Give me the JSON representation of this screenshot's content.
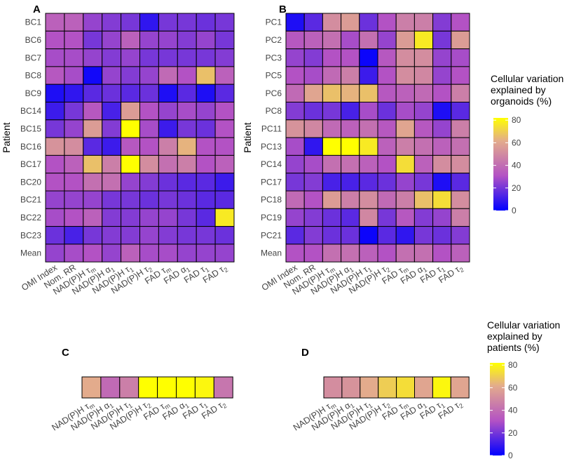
{
  "figure": {
    "column_labels_heatmap": [
      "OMI Index",
      "Nom. RR",
      "NAD(P)H τm",
      "NAD(P)H α1",
      "NAD(P)H τ1",
      "NAD(P)H τ2",
      "FAD τm",
      "FAD α1",
      "FAD τ1",
      "FAD τ2"
    ],
    "column_labels_bar": [
      "NAD(P)H τm",
      "NAD(P)H α1",
      "NAD(P)H τ1",
      "NAD(P)H τ2",
      "FAD τm",
      "FAD α1",
      "FAD τ1",
      "FAD τ2"
    ],
    "y_axis_title": "Patient"
  },
  "colors": {
    "scale_low": "#0000ff",
    "scale_mid": "#b352c4",
    "scale_mid2": "#e3ab8c",
    "scale_high": "#ffff00",
    "border": "#000000"
  },
  "legends": [
    {
      "title_lines": [
        "Cellular variation",
        "explained by",
        "organoids (%)"
      ],
      "ticks": [
        "80",
        "60",
        "40",
        "20",
        "0"
      ]
    },
    {
      "title_lines": [
        "Cellular variation",
        "explained by",
        "patients (%)"
      ],
      "ticks": [
        "80",
        "60",
        "40",
        "20",
        "0"
      ]
    }
  ],
  "chart_data": [
    {
      "panel": "A",
      "type": "heatmap",
      "ylabel": "Patient",
      "rows": [
        "BC1",
        "BC6",
        "BC7",
        "BC8",
        "BC9",
        "BC14",
        "BC15",
        "BC16",
        "BC17",
        "BC20",
        "BC21",
        "BC22",
        "BC23",
        "Mean"
      ],
      "values": [
        [
          35,
          35,
          25,
          22,
          20,
          8,
          20,
          20,
          18,
          20
        ],
        [
          30,
          30,
          20,
          25,
          35,
          25,
          25,
          22,
          25,
          20
        ],
        [
          28,
          28,
          25,
          22,
          25,
          20,
          20,
          20,
          20,
          22
        ],
        [
          32,
          28,
          3,
          25,
          22,
          25,
          38,
          30,
          65,
          35
        ],
        [
          5,
          8,
          15,
          18,
          15,
          18,
          5,
          15,
          5,
          15
        ],
        [
          10,
          20,
          32,
          12,
          55,
          30,
          25,
          28,
          25,
          30
        ],
        [
          20,
          25,
          55,
          22,
          82,
          28,
          10,
          20,
          18,
          30
        ],
        [
          52,
          50,
          15,
          10,
          32,
          30,
          45,
          62,
          30,
          30
        ],
        [
          30,
          35,
          65,
          45,
          82,
          50,
          40,
          45,
          30,
          35
        ],
        [
          30,
          30,
          40,
          40,
          25,
          22,
          18,
          15,
          15,
          10
        ],
        [
          25,
          25,
          25,
          20,
          20,
          18,
          20,
          18,
          15,
          15
        ],
        [
          28,
          30,
          35,
          22,
          22,
          25,
          25,
          20,
          15,
          75
        ],
        [
          18,
          12,
          20,
          22,
          22,
          25,
          22,
          20,
          20,
          18
        ],
        [
          25,
          28,
          30,
          25,
          35,
          28,
          28,
          25,
          25,
          25
        ]
      ]
    },
    {
      "panel": "B",
      "type": "heatmap",
      "ylabel": "Patient",
      "rows": [
        "PC1",
        "PC2",
        "PC3",
        "PC5",
        "PC6",
        "PC8",
        "PC11",
        "PC13",
        "PC14",
        "PC17",
        "PC18",
        "PC19",
        "PC21",
        "Mean"
      ],
      "values": [
        [
          5,
          15,
          50,
          55,
          18,
          30,
          45,
          45,
          22,
          30
        ],
        [
          32,
          35,
          40,
          28,
          40,
          25,
          55,
          75,
          20,
          55
        ],
        [
          25,
          22,
          30,
          30,
          2,
          32,
          50,
          50,
          25,
          28
        ],
        [
          30,
          28,
          38,
          45,
          10,
          30,
          50,
          48,
          25,
          30
        ],
        [
          38,
          58,
          65,
          62,
          65,
          32,
          35,
          38,
          30,
          45
        ],
        [
          22,
          18,
          20,
          12,
          28,
          18,
          28,
          25,
          5,
          15
        ],
        [
          52,
          48,
          38,
          35,
          40,
          32,
          58,
          32,
          25,
          45
        ],
        [
          28,
          8,
          82,
          82,
          75,
          35,
          45,
          40,
          35,
          40
        ],
        [
          25,
          28,
          40,
          40,
          35,
          30,
          72,
          35,
          50,
          50
        ],
        [
          20,
          22,
          12,
          12,
          15,
          18,
          25,
          20,
          5,
          15
        ],
        [
          38,
          30,
          55,
          45,
          50,
          38,
          45,
          65,
          72,
          50
        ],
        [
          25,
          22,
          18,
          15,
          48,
          20,
          32,
          22,
          25,
          45
        ],
        [
          15,
          22,
          18,
          18,
          2,
          15,
          8,
          20,
          18,
          22
        ],
        [
          30,
          30,
          40,
          40,
          35,
          30,
          40,
          40,
          30,
          35
        ]
      ]
    },
    {
      "panel": "C",
      "type": "heatmap",
      "categories": [
        "NAD(P)H τm",
        "NAD(P)H α1",
        "NAD(P)H τ1",
        "NAD(P)H τ2",
        "FAD τm",
        "FAD α1",
        "FAD τ1",
        "FAD τ2"
      ],
      "values": [
        60,
        38,
        45,
        80,
        80,
        80,
        78,
        42
      ]
    },
    {
      "panel": "D",
      "type": "heatmap",
      "categories": [
        "NAD(P)H τm",
        "NAD(P)H α1",
        "NAD(P)H τ1",
        "NAD(P)H τ2",
        "FAD τm",
        "FAD α1",
        "FAD τ1",
        "FAD τ2"
      ],
      "values": [
        50,
        52,
        60,
        68,
        72,
        58,
        78,
        58
      ]
    }
  ]
}
